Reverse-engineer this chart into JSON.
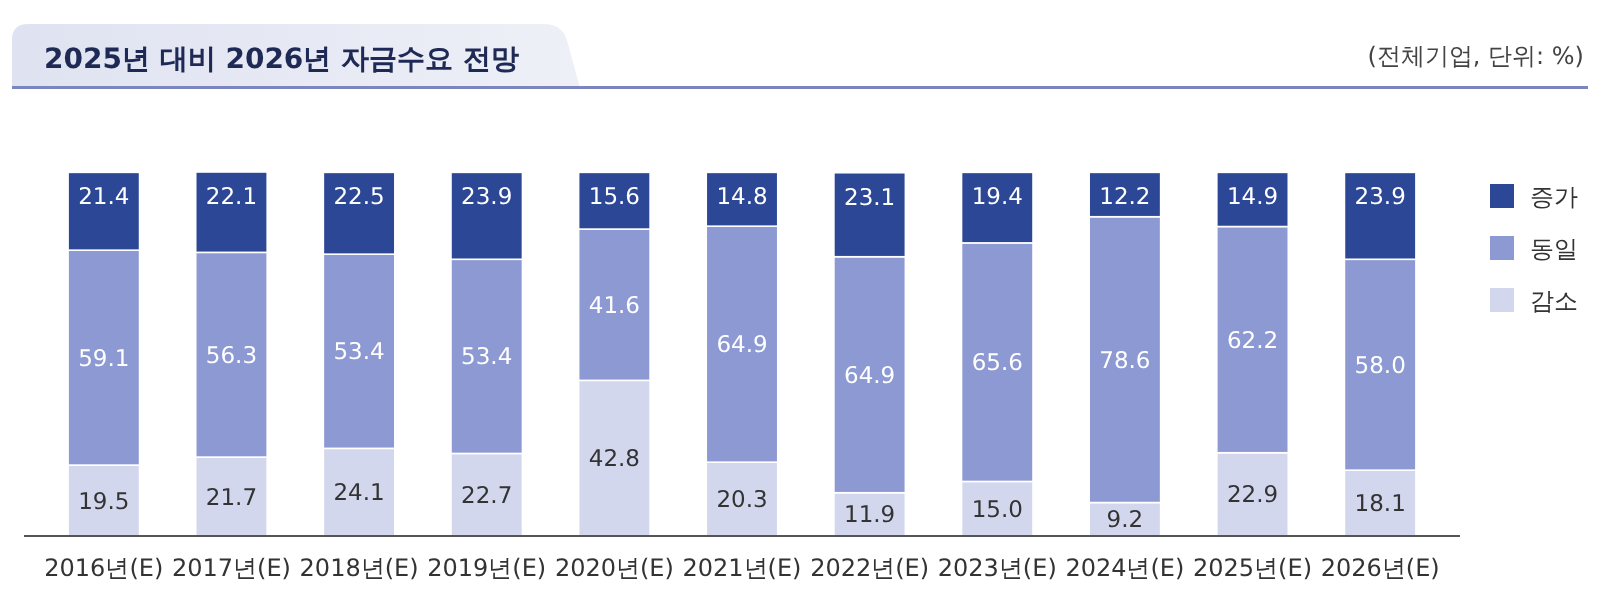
{
  "chart_data": {
    "type": "bar",
    "title": "2025년 대비 2026년 자금수요 전망",
    "annotations": [
      "(전체기업, 단위: %)"
    ],
    "categories": [
      "2016년(E)",
      "2017년(E)",
      "2018년(E)",
      "2019년(E)",
      "2020년(E)",
      "2021년(E)",
      "2022년(E)",
      "2023년(E)",
      "2024년(E)",
      "2025년(E)",
      "2026년(E)"
    ],
    "stacked": true,
    "legend": "right",
    "grid": false,
    "series": [
      {
        "name": "감소",
        "color": "#d3d7ee",
        "values": [
          19.5,
          21.7,
          24.1,
          22.7,
          42.8,
          20.3,
          11.9,
          15.0,
          9.2,
          22.9,
          18.1
        ],
        "value_labels": [
          "19.5",
          "21.7",
          "24.1",
          "22.7",
          "42.8",
          "20.3",
          "11.9",
          "15.0",
          "9.2",
          "22.9",
          "18.1"
        ]
      },
      {
        "name": "동일",
        "color": "#8d99d2",
        "values": [
          59.1,
          56.3,
          53.4,
          53.4,
          41.6,
          64.9,
          64.9,
          65.6,
          78.6,
          62.2,
          58.0
        ],
        "value_labels": [
          "59.1",
          "56.3",
          "53.4",
          "53.4",
          "41.6",
          "64.9",
          "64.9",
          "65.6",
          "78.6",
          "62.2",
          "58.0"
        ]
      },
      {
        "name": "증가",
        "color": "#2c4796",
        "values": [
          21.4,
          22.1,
          22.5,
          23.9,
          15.6,
          14.8,
          23.1,
          19.4,
          12.2,
          14.9,
          23.9
        ],
        "value_labels": [
          "21.4",
          "22.1",
          "22.5",
          "23.9",
          "15.6",
          "14.8",
          "23.1",
          "19.4",
          "12.2",
          "14.9",
          "23.9"
        ]
      }
    ]
  }
}
